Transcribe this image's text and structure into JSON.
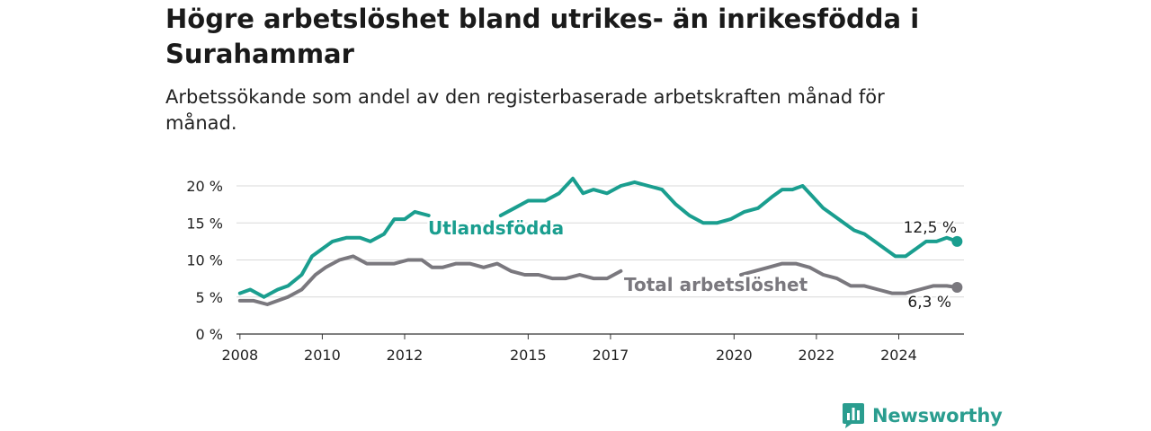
{
  "header": {
    "title": "Högre arbetslöshet bland utrikes- än inrikesfödda i Surahammar",
    "subtitle": "Arbetssökande som andel av den registerbaserade arbetskraften månad för månad."
  },
  "brand": {
    "name": "Newsworthy",
    "icon": "bar-chart-logo-icon",
    "color": "#2a9d8f"
  },
  "chart_data": {
    "type": "line",
    "ylim": [
      0,
      20
    ],
    "y_ticks": [
      "0 %",
      "5 %",
      "10 %",
      "15 %",
      "20 %"
    ],
    "x_range": [
      "2007-12",
      "2025-08"
    ],
    "x_ticks": [
      "2008",
      "2010",
      "2012",
      "2015",
      "2017",
      "2020",
      "2022",
      "2024"
    ],
    "grid": true,
    "series": [
      {
        "name": "Utlandsfödda",
        "color": "#1a9e8f",
        "end_label": "12,5 %",
        "points": [
          [
            "2008-01",
            5.5
          ],
          [
            "2008-04",
            6.0
          ],
          [
            "2008-08",
            5.0
          ],
          [
            "2008-12",
            6.0
          ],
          [
            "2009-03",
            6.5
          ],
          [
            "2009-07",
            8.0
          ],
          [
            "2009-10",
            10.5
          ],
          [
            "2010-01",
            11.5
          ],
          [
            "2010-04",
            12.5
          ],
          [
            "2010-08",
            13.0
          ],
          [
            "2010-12",
            13.0
          ],
          [
            "2011-03",
            12.5
          ],
          [
            "2011-07",
            13.5
          ],
          [
            "2011-10",
            15.5
          ],
          [
            "2012-01",
            15.5
          ],
          [
            "2012-04",
            16.5
          ],
          [
            "2012-08",
            16.0
          ],
          null,
          [
            "2014-05",
            16.0
          ],
          [
            "2014-09",
            17.0
          ],
          [
            "2015-01",
            18.0
          ],
          [
            "2015-06",
            18.0
          ],
          [
            "2015-10",
            19.0
          ],
          [
            "2016-02",
            21.0
          ],
          [
            "2016-05",
            19.0
          ],
          [
            "2016-08",
            19.5
          ],
          [
            "2016-12",
            19.0
          ],
          [
            "2017-04",
            20.0
          ],
          [
            "2017-08",
            20.5
          ],
          [
            "2017-12",
            20.0
          ],
          [
            "2018-04",
            19.5
          ],
          [
            "2018-08",
            17.5
          ],
          [
            "2018-12",
            16.0
          ],
          [
            "2019-04",
            15.0
          ],
          [
            "2019-08",
            15.0
          ],
          [
            "2019-12",
            15.5
          ],
          [
            "2020-04",
            16.5
          ],
          [
            "2020-08",
            17.0
          ],
          [
            "2020-12",
            18.5
          ],
          [
            "2021-03",
            19.5
          ],
          [
            "2021-06",
            19.5
          ],
          [
            "2021-09",
            20.0
          ],
          [
            "2021-12",
            18.5
          ],
          [
            "2022-03",
            17.0
          ],
          [
            "2022-06",
            16.0
          ],
          [
            "2022-09",
            15.0
          ],
          [
            "2022-12",
            14.0
          ],
          [
            "2023-03",
            13.5
          ],
          [
            "2023-06",
            12.5
          ],
          [
            "2023-09",
            11.5
          ],
          [
            "2023-12",
            10.5
          ],
          [
            "2024-03",
            10.5
          ],
          [
            "2024-06",
            11.5
          ],
          [
            "2024-09",
            12.5
          ],
          [
            "2024-12",
            12.5
          ],
          [
            "2025-03",
            13.0
          ],
          [
            "2025-06",
            12.5
          ]
        ]
      },
      {
        "name": "Total arbetslöshet",
        "color": "#7a787e",
        "end_label": "6,3 %",
        "points": [
          [
            "2008-01",
            4.5
          ],
          [
            "2008-05",
            4.5
          ],
          [
            "2008-09",
            4.0
          ],
          [
            "2008-12",
            4.5
          ],
          [
            "2009-03",
            5.0
          ],
          [
            "2009-07",
            6.0
          ],
          [
            "2009-11",
            8.0
          ],
          [
            "2010-02",
            9.0
          ],
          [
            "2010-06",
            10.0
          ],
          [
            "2010-10",
            10.5
          ],
          [
            "2011-02",
            9.5
          ],
          [
            "2011-06",
            9.5
          ],
          [
            "2011-10",
            9.5
          ],
          [
            "2012-02",
            10.0
          ],
          [
            "2012-06",
            10.0
          ],
          [
            "2012-09",
            9.0
          ],
          [
            "2012-12",
            9.0
          ],
          [
            "2013-04",
            9.5
          ],
          [
            "2013-08",
            9.5
          ],
          [
            "2013-12",
            9.0
          ],
          [
            "2014-04",
            9.5
          ],
          [
            "2014-08",
            8.5
          ],
          [
            "2014-12",
            8.0
          ],
          [
            "2015-04",
            8.0
          ],
          [
            "2015-08",
            7.5
          ],
          [
            "2015-12",
            7.5
          ],
          [
            "2016-04",
            8.0
          ],
          [
            "2016-08",
            7.5
          ],
          [
            "2016-12",
            7.5
          ],
          [
            "2017-04",
            8.5
          ],
          null,
          [
            "2020-03",
            8.0
          ],
          [
            "2020-07",
            8.5
          ],
          [
            "2020-11",
            9.0
          ],
          [
            "2021-03",
            9.5
          ],
          [
            "2021-07",
            9.5
          ],
          [
            "2021-11",
            9.0
          ],
          [
            "2022-03",
            8.0
          ],
          [
            "2022-07",
            7.5
          ],
          [
            "2022-11",
            6.5
          ],
          [
            "2023-03",
            6.5
          ],
          [
            "2023-07",
            6.0
          ],
          [
            "2023-11",
            5.5
          ],
          [
            "2024-03",
            5.5
          ],
          [
            "2024-07",
            6.0
          ],
          [
            "2024-11",
            6.5
          ],
          [
            "2025-03",
            6.5
          ],
          [
            "2025-06",
            6.3
          ]
        ]
      }
    ]
  }
}
